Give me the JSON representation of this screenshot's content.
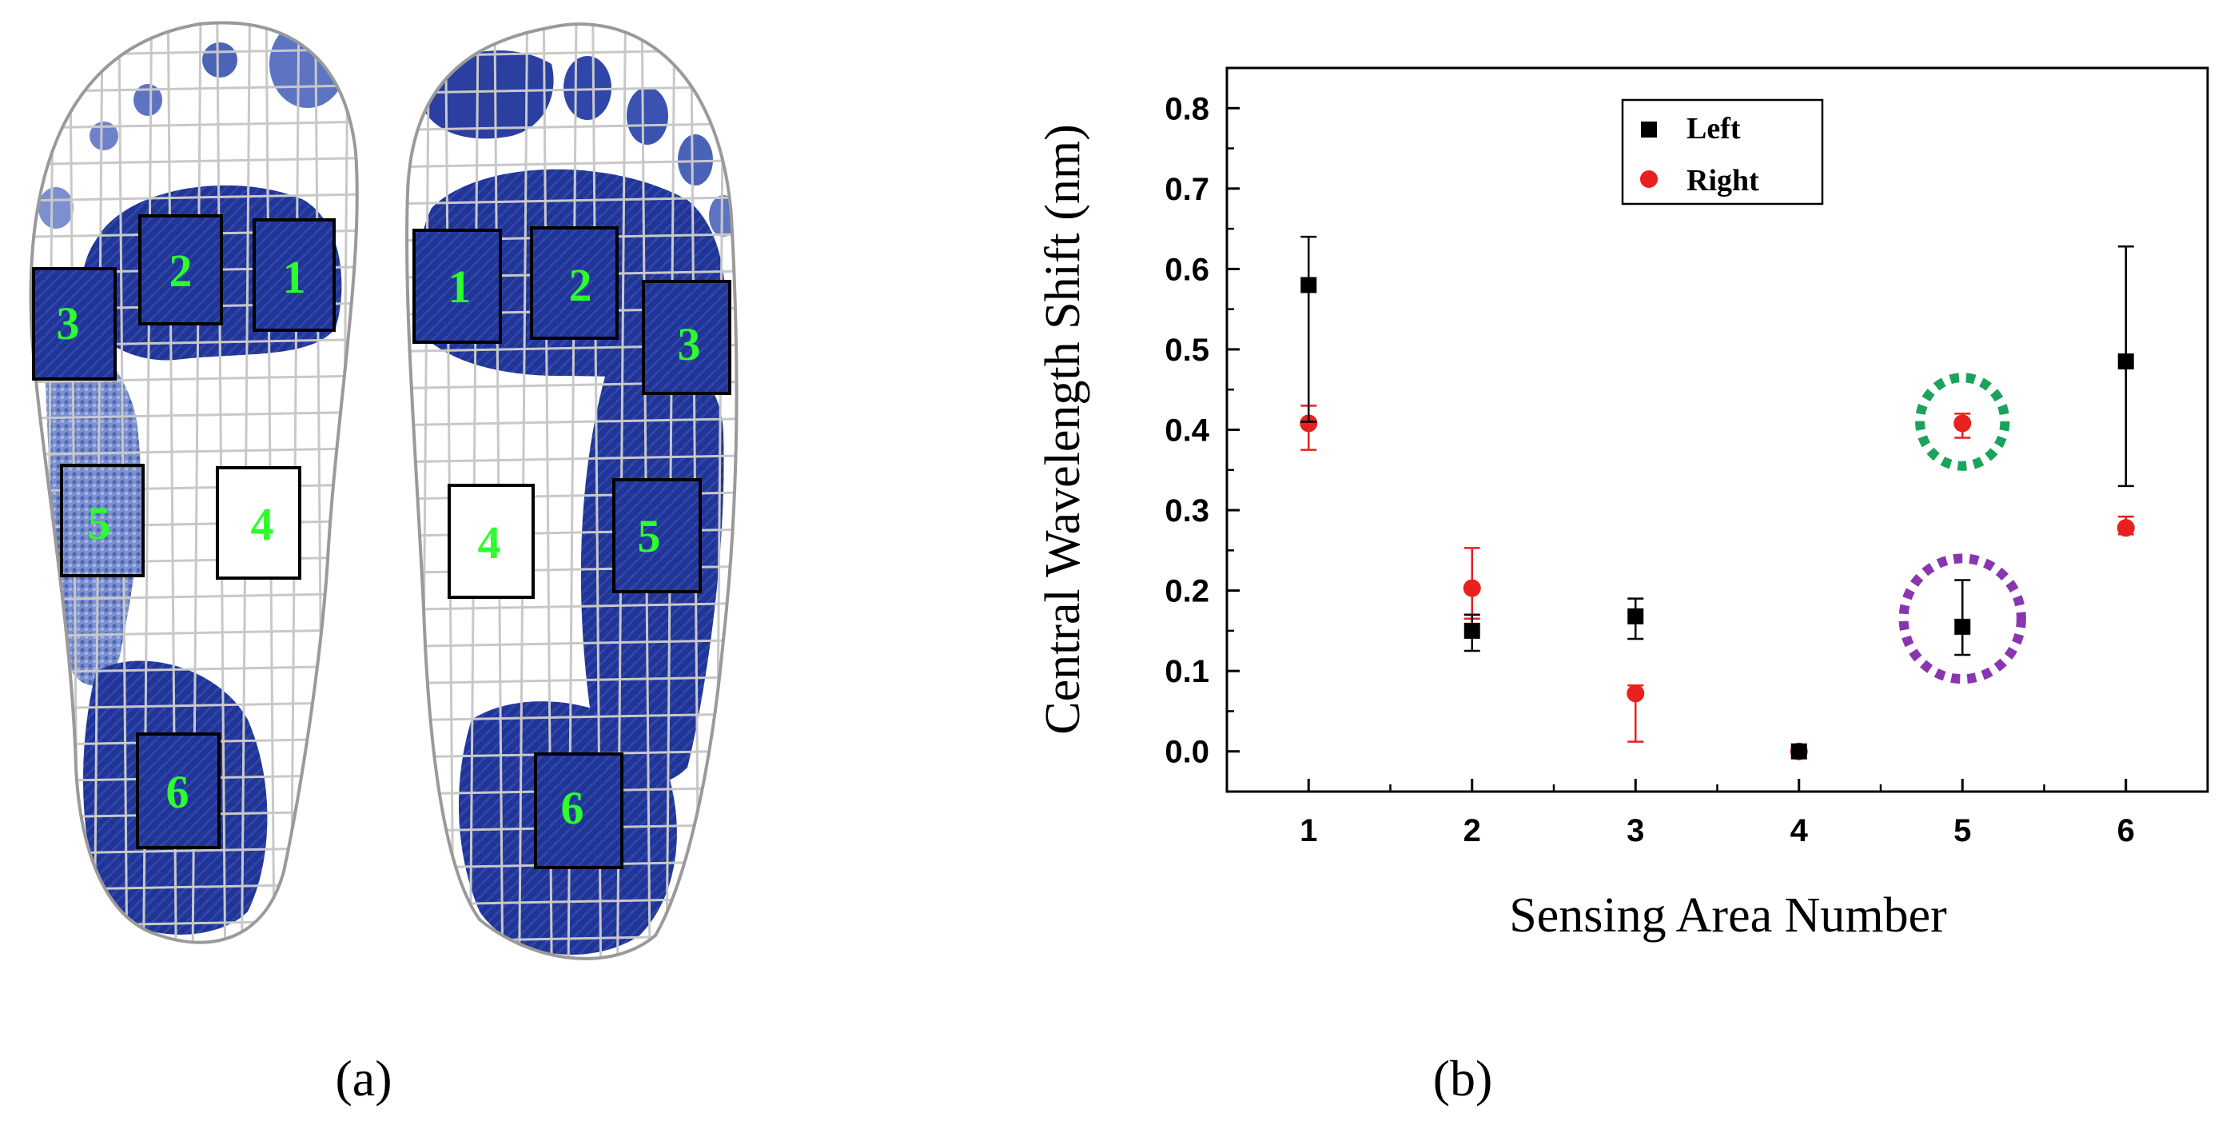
{
  "panel_a": {
    "caption": "(a)",
    "left_foot_regions": [
      "1",
      "2",
      "3",
      "4",
      "5",
      "6"
    ],
    "right_foot_regions": [
      "1",
      "2",
      "3",
      "4",
      "5",
      "6"
    ],
    "colors": {
      "ink": "#1f2f8f",
      "ink_light": "#5d74c2",
      "label": "#2cff2c",
      "mesh": "#b5b5b5",
      "box_border": "#000000"
    }
  },
  "panel_b": {
    "caption": "(b)"
  },
  "chart_data": {
    "type": "scatter",
    "xlabel": "Sensing Area Number",
    "ylabel": "Central Wavelength Shift (nm)",
    "xlim": [
      0.5,
      6.5
    ],
    "ylim": [
      -0.05,
      0.85
    ],
    "x_ticks": [
      1,
      2,
      3,
      4,
      5,
      6
    ],
    "x_tick_labels": [
      "1",
      "2",
      "3",
      "4",
      "5",
      "6"
    ],
    "y_ticks": [
      0.0,
      0.1,
      0.2,
      0.3,
      0.4,
      0.5,
      0.6,
      0.7,
      0.8
    ],
    "y_tick_labels": [
      "0.0",
      "0.1",
      "0.2",
      "0.3",
      "0.4",
      "0.5",
      "0.6",
      "0.7",
      "0.8"
    ],
    "grid": false,
    "legend_position": "top-center",
    "series": [
      {
        "name": "Left",
        "marker": "square",
        "color": "#000000",
        "points": [
          {
            "x": 1,
            "y": 0.58,
            "lo": 0.41,
            "hi": 0.64
          },
          {
            "x": 2,
            "y": 0.15,
            "lo": 0.125,
            "hi": 0.17
          },
          {
            "x": 3,
            "y": 0.168,
            "lo": 0.14,
            "hi": 0.19
          },
          {
            "x": 4,
            "y": 0.0,
            "lo": 0.0,
            "hi": 0.0
          },
          {
            "x": 5,
            "y": 0.155,
            "lo": 0.12,
            "hi": 0.213
          },
          {
            "x": 6,
            "y": 0.485,
            "lo": 0.33,
            "hi": 0.628
          }
        ]
      },
      {
        "name": "Right",
        "marker": "circle",
        "color": "#e8201f",
        "points": [
          {
            "x": 1,
            "y": 0.408,
            "lo": 0.375,
            "hi": 0.43
          },
          {
            "x": 2,
            "y": 0.203,
            "lo": 0.165,
            "hi": 0.253
          },
          {
            "x": 3,
            "y": 0.072,
            "lo": 0.012,
            "hi": 0.082
          },
          {
            "x": 4,
            "y": 0.0,
            "lo": 0.0,
            "hi": 0.0
          },
          {
            "x": 5,
            "y": 0.408,
            "lo": 0.39,
            "hi": 0.42
          },
          {
            "x": 6,
            "y": 0.278,
            "lo": 0.27,
            "hi": 0.292
          }
        ]
      }
    ],
    "annotations": [
      {
        "type": "dotted-ellipse",
        "x": 5,
        "y": 0.41,
        "rx_units": 0.26,
        "ry_units": 0.055,
        "color": "#1aa35a"
      },
      {
        "type": "dotted-ellipse",
        "x": 5,
        "y": 0.165,
        "rx_units": 0.36,
        "ry_units": 0.075,
        "color": "#8a35b0"
      }
    ]
  }
}
